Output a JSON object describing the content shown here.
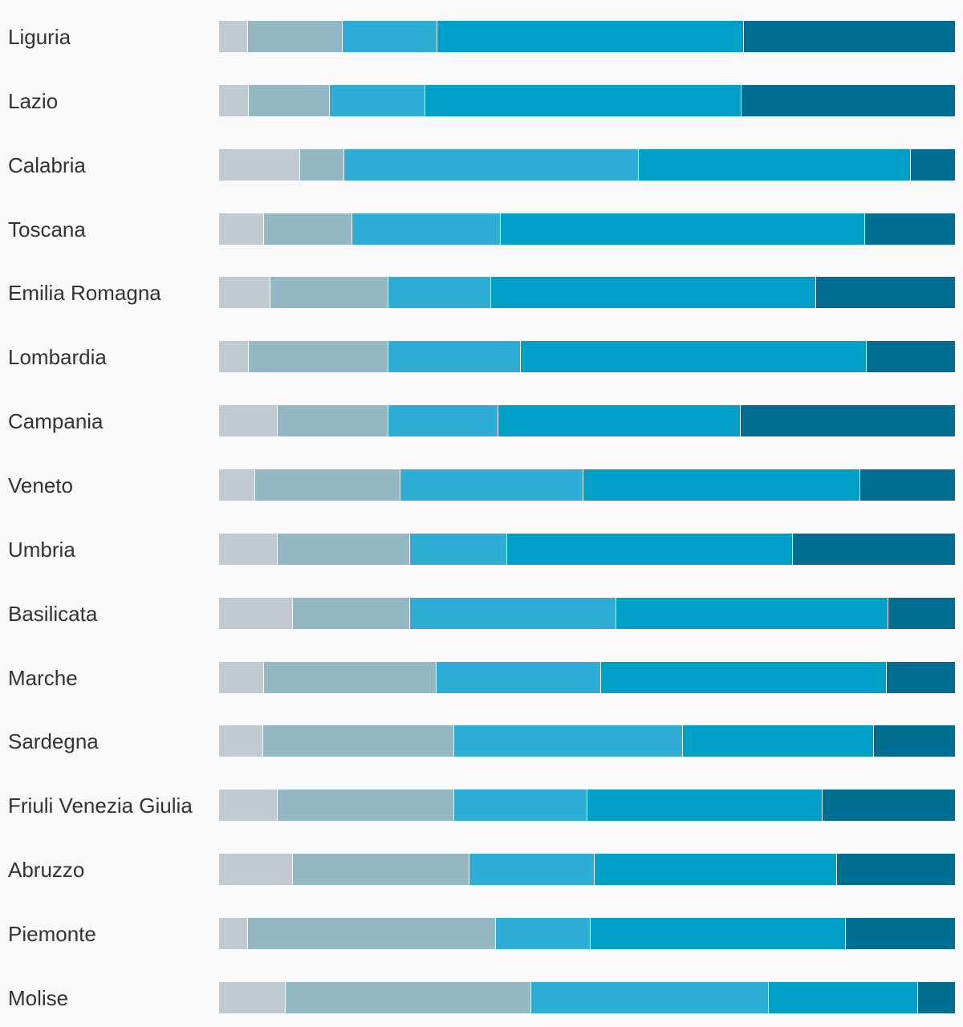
{
  "chart_data": {
    "type": "bar",
    "orientation": "horizontal",
    "stacked": "100%",
    "title": "",
    "xlabel": "",
    "ylabel": "",
    "grid": false,
    "legend": "none",
    "colors": [
      "#c0cad0",
      "#93b8c4",
      "#2eadd6",
      "#009fc7",
      "#006e91"
    ],
    "categories": [
      "Liguria",
      "Lazio",
      "Calabria",
      "Toscana",
      "Emilia Romagna",
      "Lombardia",
      "Campania",
      "Veneto",
      "Umbria",
      "Basilicata",
      "Marche",
      "Sardegna",
      "Friuli Venezia Giulia",
      "Abruzzo",
      "Piemonte",
      "Molise"
    ],
    "series": [
      {
        "values": [
          3.9,
          4.0,
          11.0,
          6.1,
          7.0,
          4.0,
          8.0,
          4.9,
          8.0,
          10.0,
          6.1,
          6.0,
          8.0,
          10.0,
          3.9,
          9.0
        ]
      },
      {
        "values": [
          12.9,
          11.0,
          6.0,
          12.0,
          16.0,
          19.0,
          15.0,
          19.8,
          18.0,
          16.0,
          23.4,
          26.0,
          24.0,
          24.0,
          33.7,
          33.4
        ]
      },
      {
        "values": [
          12.9,
          13.0,
          40.0,
          20.2,
          14.0,
          18.0,
          14.9,
          24.8,
          13.1,
          28.0,
          22.4,
          31.0,
          18.0,
          17.0,
          12.9,
          32.3
        ]
      },
      {
        "values": [
          41.6,
          43.0,
          37.0,
          49.5,
          44.1,
          47.0,
          33.0,
          37.6,
          38.9,
          37.0,
          38.8,
          26.0,
          32.0,
          33.0,
          34.7,
          20.3
        ]
      },
      {
        "values": [
          28.7,
          29.0,
          6.0,
          12.2,
          18.9,
          12.0,
          29.1,
          12.9,
          22.0,
          9.0,
          9.3,
          11.0,
          18.0,
          16.0,
          14.8,
          5.0
        ]
      }
    ]
  }
}
